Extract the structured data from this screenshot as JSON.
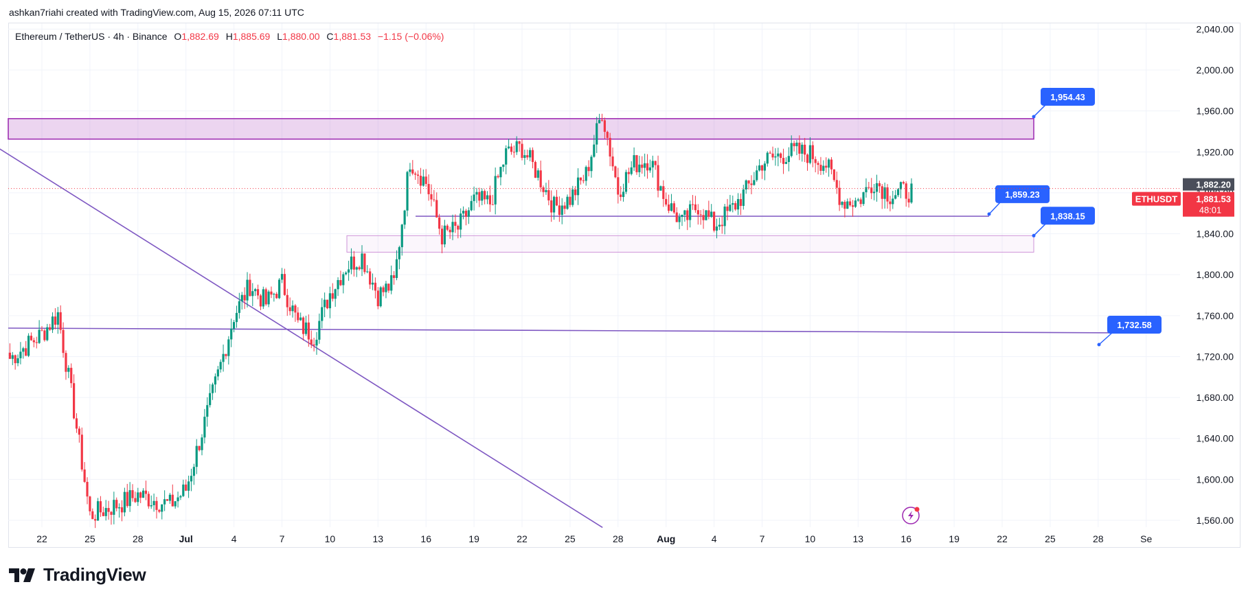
{
  "header": {
    "caption": "ashkan7riahi created with TradingView.com, Aug 15, 2026 07:11 UTC"
  },
  "legend": {
    "symbol": "Ethereum / TetherUS · 4h · Binance",
    "o_label": "O",
    "o_value": "1,882.69",
    "h_label": "H",
    "h_value": "1,885.69",
    "l_label": "L",
    "l_value": "1,880.00",
    "c_label": "C",
    "c_value": "1,881.53",
    "change": "−1.15 (−0.06%)"
  },
  "price_axis": {
    "labels": [
      "2,040.00",
      "2,000.00",
      "1,960.00",
      "1,920.00",
      "1,880.00",
      "1,840.00",
      "1,800.00",
      "1,760.00",
      "1,720.00",
      "1,680.00",
      "1,640.00",
      "1,600.00",
      "1,560.00"
    ],
    "values": [
      2040,
      2000,
      1960,
      1920,
      1880,
      1840,
      1800,
      1760,
      1720,
      1680,
      1640,
      1600,
      1560
    ]
  },
  "time_axis": {
    "labels": [
      "22",
      "25",
      "28",
      "Jul",
      "4",
      "7",
      "10",
      "13",
      "16",
      "19",
      "22",
      "25",
      "28",
      "Aug",
      "4",
      "7",
      "10",
      "13",
      "16",
      "19",
      "22",
      "25",
      "28",
      "Se"
    ],
    "bold": [
      "Jul",
      "Aug"
    ]
  },
  "current_price": {
    "symbol_tag": "ETHUSDT",
    "last_price": "1,882.20",
    "price": "1,881.53",
    "countdown": "48:01",
    "value": 1881.53
  },
  "annotations": [
    {
      "text": "1,954.43",
      "value": 1954.43
    },
    {
      "text": "1,859.23",
      "value": 1859.23
    },
    {
      "text": "1,838.15",
      "value": 1838.15
    },
    {
      "text": "1,732.58",
      "value": 1732.58
    }
  ],
  "zones": [
    {
      "name": "resistance-zone",
      "top": 1952.5,
      "bottom": 1932.5,
      "fill": "rgba(186,104,200,0.28)",
      "stroke": "#9c27b0"
    },
    {
      "name": "support-zone",
      "top": 1838.15,
      "bottom": 1822,
      "fill": "rgba(186,104,200,0.06)",
      "stroke": "#ce93d8"
    }
  ],
  "colors": {
    "up": "#089981",
    "down": "#f23645",
    "line": "#7e57c2",
    "label": "#2962ff",
    "grid": "#f0f3fa",
    "axis_text": "#131722"
  },
  "brand": {
    "name": "TradingView"
  },
  "chart_data": {
    "type": "candlestick",
    "symbol": "Ethereum / TetherUS",
    "interval": "4h",
    "exchange": "Binance",
    "ylim": [
      1548,
      2050
    ],
    "close_series_anchors": [
      [
        "Jun 20",
        1718
      ],
      [
        "Jun 22",
        1742
      ],
      [
        "Jun 23",
        1762
      ],
      [
        "Jun 24",
        1668
      ],
      [
        "Jun 25",
        1565
      ],
      [
        "Jun 27",
        1577
      ],
      [
        "Jun 28",
        1585
      ],
      [
        "Jun 30",
        1575
      ],
      [
        "Jul 1",
        1590
      ],
      [
        "Jul 3",
        1702
      ],
      [
        "Jul 4",
        1760
      ],
      [
        "Jul 5",
        1790
      ],
      [
        "Jul 6",
        1772
      ],
      [
        "Jul 7",
        1792
      ],
      [
        "Jul 8",
        1752
      ],
      [
        "Jul 9",
        1740
      ],
      [
        "Jul 10",
        1782
      ],
      [
        "Jul 11",
        1808
      ],
      [
        "Jul 12",
        1818
      ],
      [
        "Jul 13",
        1780
      ],
      [
        "Jul 14",
        1792
      ],
      [
        "Jul 15",
        1912
      ],
      [
        "Jul 16",
        1890
      ],
      [
        "Jul 17",
        1838
      ],
      [
        "Jul 18",
        1845
      ],
      [
        "Jul 19",
        1872
      ],
      [
        "Jul 20",
        1870
      ],
      [
        "Jul 21",
        1918
      ],
      [
        "Jul 22",
        1924
      ],
      [
        "Jul 23",
        1898
      ],
      [
        "Jul 24",
        1866
      ],
      [
        "Jul 25",
        1874
      ],
      [
        "Jul 26",
        1898
      ],
      [
        "Jul 27",
        1960
      ],
      [
        "Jul 28",
        1882
      ],
      [
        "Jul 29",
        1908
      ],
      [
        "Jul 30",
        1913
      ],
      [
        "Jul 31",
        1872
      ],
      [
        "Aug 1",
        1850
      ],
      [
        "Aug 2",
        1868
      ],
      [
        "Aug 3",
        1848
      ],
      [
        "Aug 4",
        1862
      ],
      [
        "Aug 5",
        1882
      ],
      [
        "Aug 6",
        1910
      ],
      [
        "Aug 7",
        1916
      ],
      [
        "Aug 8",
        1920
      ],
      [
        "Aug 9",
        1918
      ],
      [
        "Aug 10",
        1908
      ],
      [
        "Aug 11",
        1872
      ],
      [
        "Aug 12",
        1872
      ],
      [
        "Aug 13",
        1892
      ],
      [
        "Aug 14",
        1878
      ],
      [
        "Aug 15",
        1881.53
      ]
    ],
    "horizontal_levels": [
      1954.43,
      1859.23,
      1838.15,
      1732.58
    ],
    "trendline": {
      "start": [
        "Jun 19",
        1937
      ],
      "end": [
        "Jul 26",
        1553
      ]
    }
  }
}
